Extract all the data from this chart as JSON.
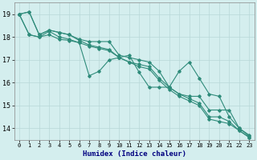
{
  "xlabel": "Humidex (Indice chaleur)",
  "bg_color": "#d4eeee",
  "grid_color": "#b8d8d8",
  "line_color": "#2e8b7a",
  "xlim": [
    -0.5,
    23.5
  ],
  "ylim": [
    13.5,
    19.5
  ],
  "yticks": [
    14,
    15,
    16,
    17,
    18,
    19
  ],
  "xticks": [
    0,
    1,
    2,
    3,
    4,
    5,
    6,
    7,
    8,
    9,
    10,
    11,
    12,
    13,
    14,
    15,
    16,
    17,
    18,
    19,
    20,
    21,
    22,
    23
  ],
  "tick_fontsize": 5.0,
  "ytick_fontsize": 6.0,
  "xlabel_fontsize": 6.5,
  "series": [
    {
      "x": [
        0,
        1,
        2,
        3,
        4,
        5,
        6,
        7,
        8,
        9,
        10,
        11,
        12,
        13,
        14,
        15,
        16,
        17,
        18,
        19,
        20,
        21,
        22,
        23
      ],
      "y": [
        19.0,
        19.1,
        18.1,
        18.3,
        18.2,
        18.1,
        17.9,
        17.8,
        17.8,
        17.8,
        17.2,
        17.1,
        17.0,
        16.9,
        16.5,
        15.8,
        15.5,
        15.4,
        15.4,
        14.8,
        14.8,
        14.8,
        14.0,
        13.7
      ]
    },
    {
      "x": [
        0,
        1,
        2,
        3,
        4,
        5,
        6,
        7,
        8,
        9,
        10,
        11,
        12,
        13,
        14,
        15,
        16,
        17,
        18,
        19,
        20,
        21,
        22,
        23
      ],
      "y": [
        19.0,
        19.1,
        18.1,
        18.3,
        18.2,
        18.1,
        17.85,
        17.65,
        17.55,
        17.45,
        17.1,
        16.9,
        16.8,
        16.7,
        16.2,
        15.8,
        15.5,
        15.3,
        15.1,
        14.5,
        14.5,
        14.3,
        13.9,
        13.6
      ]
    },
    {
      "x": [
        0,
        1,
        2,
        3,
        4,
        5,
        6,
        7,
        8,
        9,
        10,
        11,
        12,
        13,
        14,
        15,
        16,
        17,
        18,
        19,
        20,
        21,
        22,
        23
      ],
      "y": [
        19.0,
        18.1,
        18.0,
        18.25,
        18.0,
        17.9,
        17.75,
        16.3,
        16.5,
        17.0,
        17.1,
        17.2,
        16.45,
        15.8,
        15.8,
        15.8,
        16.5,
        16.9,
        16.2,
        15.5,
        15.4,
        14.5,
        14.0,
        13.65
      ]
    },
    {
      "x": [
        0,
        1,
        2,
        3,
        4,
        5,
        6,
        7,
        8,
        9,
        10,
        11,
        12,
        13,
        14,
        15,
        16,
        17,
        18,
        19,
        20,
        21,
        22,
        23
      ],
      "y": [
        19.0,
        18.1,
        18.0,
        18.1,
        17.9,
        17.85,
        17.75,
        17.6,
        17.5,
        17.4,
        17.1,
        16.9,
        16.7,
        16.6,
        16.1,
        15.7,
        15.4,
        15.2,
        15.0,
        14.4,
        14.3,
        14.2,
        13.9,
        13.6
      ]
    }
  ]
}
